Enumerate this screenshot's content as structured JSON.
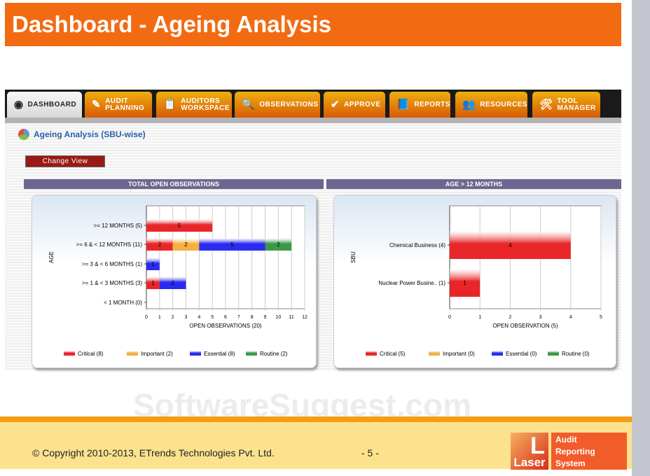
{
  "title": "Dashboard - Ageing Analysis",
  "tabs": [
    {
      "label": "DASHBOARD",
      "icon": "gauge-icon",
      "glyph": "◉"
    },
    {
      "label": "AUDIT PLANNING",
      "icon": "pencil-icon",
      "glyph": "✎"
    },
    {
      "label": "AUDITORS WORKSPACE",
      "icon": "clipboard-icon",
      "glyph": "📋"
    },
    {
      "label": "OBSERVATIONS",
      "icon": "magnifier-icon",
      "glyph": "🔍"
    },
    {
      "label": "APPROVE",
      "icon": "checkmark-icon",
      "glyph": "✔"
    },
    {
      "label": "REPORTS",
      "icon": "notebook-icon",
      "glyph": "📘"
    },
    {
      "label": "RESOURCES",
      "icon": "people-icon",
      "glyph": "👥"
    },
    {
      "label": "TOOL MANAGER",
      "icon": "tools-icon",
      "glyph": "🛠"
    }
  ],
  "panel_title": "Ageing Analysis (SBU-wise)",
  "change_view": "Change View",
  "watermark": "SoftwareSuggest.com",
  "footer": {
    "copyright": "© Copyright 2010-2013, ETrends Technologies Pvt. Ltd.",
    "page": "- 5 -",
    "logo_word": "Laser",
    "logo_text": [
      "Audit",
      "Reporting",
      "System"
    ]
  },
  "chart_data": [
    {
      "type": "bar",
      "orientation": "horizontal",
      "stacked": true,
      "header": "TOTAL OPEN OBSERVATIONS",
      "xlabel": "OPEN OBSERVATIONS (20)",
      "ylabel": "AGE",
      "xlim": [
        0,
        12
      ],
      "categories": [
        ">= 12 MONTHS (5)",
        ">= 6 & < 12 MONTHS (11)",
        ">= 3 & < 6 MONTHS (1)",
        ">= 1 & < 3 MONTHS (3)",
        "< 1 MONTH (0)"
      ],
      "series": [
        {
          "name": "Critical (8)",
          "color": "#e8262a",
          "values": [
            5,
            2,
            0,
            1,
            0
          ]
        },
        {
          "name": "Important (2)",
          "color": "#f5b041",
          "values": [
            0,
            2,
            0,
            0,
            0
          ]
        },
        {
          "name": "Essential (8)",
          "color": "#2b2bee",
          "values": [
            0,
            5,
            1,
            2,
            0
          ]
        },
        {
          "name": "Routine (2)",
          "color": "#3a9a4a",
          "values": [
            0,
            2,
            0,
            0,
            0
          ]
        }
      ]
    },
    {
      "type": "bar",
      "orientation": "horizontal",
      "stacked": true,
      "header": "AGE > 12 MONTHS",
      "xlabel": "OPEN OBSERVATION (5)",
      "ylabel": "SBU",
      "xlim": [
        0,
        5
      ],
      "categories": [
        "Chemical Business (4)",
        "Nuclear Power Busine.. (1)"
      ],
      "series": [
        {
          "name": "Critical (5)",
          "color": "#e8262a",
          "values": [
            4,
            1
          ]
        },
        {
          "name": "Important (0)",
          "color": "#f5b041",
          "values": [
            0,
            0
          ]
        },
        {
          "name": "Essential (0)",
          "color": "#2b2bee",
          "values": [
            0,
            0
          ]
        },
        {
          "name": "Routine (0)",
          "color": "#3a9a4a",
          "values": [
            0,
            0
          ]
        }
      ]
    }
  ]
}
